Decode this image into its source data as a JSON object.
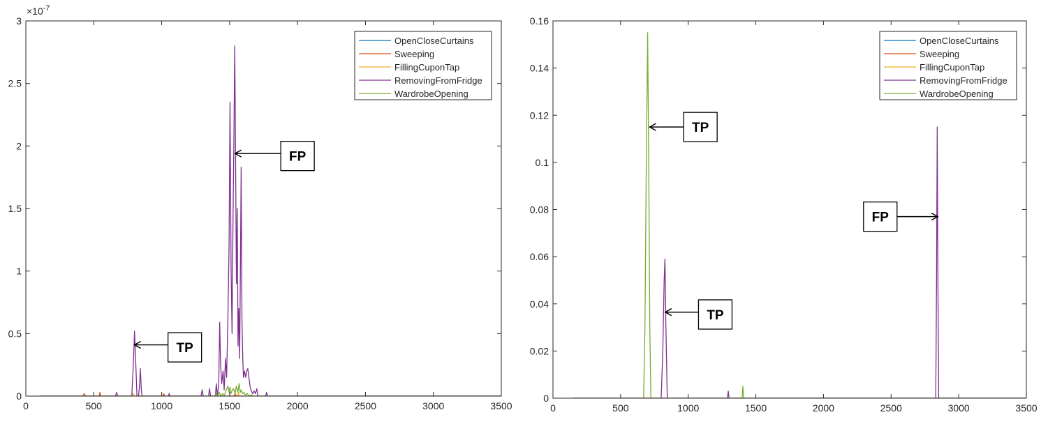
{
  "colors": {
    "series": [
      "#0072BD",
      "#D95319",
      "#EDB120",
      "#7E2F8E",
      "#77AC30"
    ],
    "axis": "#262626",
    "background": "#ffffff"
  },
  "chart_data": [
    {
      "type": "line",
      "title": "",
      "xlabel": "",
      "ylabel": "",
      "exponent_label": "×10",
      "exponent_power": "-7",
      "xlim": [
        0,
        3500
      ],
      "ylim": [
        0,
        3
      ],
      "x_ticks": [
        0,
        500,
        1000,
        1500,
        2000,
        2500,
        3000,
        3500
      ],
      "x_tick_labels": [
        "0",
        "500",
        "1000",
        "1500",
        "2000",
        "2500",
        "3000",
        "3500"
      ],
      "y_ticks": [
        0,
        0.5,
        1,
        1.5,
        2,
        2.5,
        3
      ],
      "y_tick_labels": [
        "0",
        "0.5",
        "1",
        "1.5",
        "2",
        "2.5",
        "3"
      ],
      "grid": false,
      "legend_position": "top-right",
      "series": [
        {
          "name": "OpenCloseCurtains",
          "points": [
            [
              100,
              0
            ],
            [
              3500,
              0
            ]
          ]
        },
        {
          "name": "Sweeping",
          "points": [
            [
              100,
              0
            ],
            [
              420,
              0
            ],
            [
              430,
              0.02
            ],
            [
              440,
              0
            ],
            [
              540,
              0
            ],
            [
              545,
              0.03
            ],
            [
              552,
              0
            ],
            [
              1010,
              0
            ],
            [
              1015,
              0.02
            ],
            [
              1022,
              0
            ],
            [
              1530,
              0
            ],
            [
              1540,
              0.02
            ],
            [
              1550,
              0
            ],
            [
              3500,
              0
            ]
          ]
        },
        {
          "name": "FillingCuponTap",
          "points": [
            [
              100,
              0
            ],
            [
              780,
              0
            ],
            [
              790,
              0.02
            ],
            [
              798,
              0
            ],
            [
              1560,
              0
            ],
            [
              1565,
              0.03
            ],
            [
              1572,
              0
            ],
            [
              3500,
              0
            ]
          ]
        },
        {
          "name": "RemovingFromFridge",
          "points": [
            [
              100,
              0
            ],
            [
              660,
              0
            ],
            [
              668,
              0.03
            ],
            [
              676,
              0
            ],
            [
              780,
              0
            ],
            [
              793,
              0.3
            ],
            [
              800,
              0.52
            ],
            [
              808,
              0.3
            ],
            [
              818,
              0
            ],
            [
              830,
              0
            ],
            [
              838,
              0.1
            ],
            [
              843,
              0.22
            ],
            [
              850,
              0.05
            ],
            [
              856,
              0
            ],
            [
              1050,
              0
            ],
            [
              1055,
              0.02
            ],
            [
              1060,
              0
            ],
            [
              1290,
              0
            ],
            [
              1298,
              0.05
            ],
            [
              1306,
              0
            ],
            [
              1345,
              0
            ],
            [
              1352,
              0.06
            ],
            [
              1360,
              0
            ],
            [
              1395,
              0
            ],
            [
              1402,
              0.1
            ],
            [
              1410,
              0
            ],
            [
              1420,
              0.1
            ],
            [
              1427,
              0.59
            ],
            [
              1434,
              0.25
            ],
            [
              1442,
              0.1
            ],
            [
              1452,
              0.2
            ],
            [
              1460,
              0.05
            ],
            [
              1470,
              0.3
            ],
            [
              1478,
              0.15
            ],
            [
              1487,
              0.6
            ],
            [
              1496,
              1.2
            ],
            [
              1503,
              2.35
            ],
            [
              1511,
              1.0
            ],
            [
              1518,
              0.5
            ],
            [
              1525,
              1.4
            ],
            [
              1532,
              2.1
            ],
            [
              1538,
              2.8
            ],
            [
              1544,
              1.9
            ],
            [
              1550,
              0.9
            ],
            [
              1556,
              1.5
            ],
            [
              1562,
              0.4
            ],
            [
              1568,
              0.7
            ],
            [
              1574,
              0.3
            ],
            [
              1580,
              1.1
            ],
            [
              1585,
              1.83
            ],
            [
              1591,
              0.6
            ],
            [
              1597,
              0.3
            ],
            [
              1602,
              0.15
            ],
            [
              1610,
              0.2
            ],
            [
              1618,
              0.15
            ],
            [
              1626,
              0.2
            ],
            [
              1634,
              0.22
            ],
            [
              1642,
              0.15
            ],
            [
              1650,
              0.08
            ],
            [
              1660,
              0.04
            ],
            [
              1670,
              0.02
            ],
            [
              1680,
              0.04
            ],
            [
              1690,
              0.02
            ],
            [
              1700,
              0.06
            ],
            [
              1708,
              0
            ],
            [
              1765,
              0
            ],
            [
              1772,
              0.03
            ],
            [
              1780,
              0
            ],
            [
              3500,
              0
            ]
          ]
        },
        {
          "name": "WardrobeOpening",
          "points": [
            [
              100,
              0
            ],
            [
              1390,
              0
            ],
            [
              1400,
              0.02
            ],
            [
              1410,
              0
            ],
            [
              1425,
              0.03
            ],
            [
              1435,
              0
            ],
            [
              1450,
              0.02
            ],
            [
              1460,
              0
            ],
            [
              1475,
              0.05
            ],
            [
              1488,
              0.08
            ],
            [
              1496,
              0.03
            ],
            [
              1502,
              0.07
            ],
            [
              1510,
              0.02
            ],
            [
              1520,
              0.05
            ],
            [
              1530,
              0.06
            ],
            [
              1540,
              0.02
            ],
            [
              1550,
              0.08
            ],
            [
              1560,
              0.03
            ],
            [
              1570,
              0.1
            ],
            [
              1578,
              0.03
            ],
            [
              1585,
              0.05
            ],
            [
              1595,
              0.02
            ],
            [
              1605,
              0.03
            ],
            [
              1615,
              0.01
            ],
            [
              1630,
              0.02
            ],
            [
              1645,
              0
            ],
            [
              1660,
              0.01
            ],
            [
              1675,
              0
            ],
            [
              3500,
              0
            ]
          ]
        }
      ],
      "annotations": [
        {
          "text": "TP",
          "arrow_to": [
            800,
            0.41
          ],
          "box_center": [
            1170,
            0.39
          ]
        },
        {
          "text": "FP",
          "arrow_to": [
            1540,
            1.94
          ],
          "box_center": [
            2000,
            1.92
          ]
        }
      ]
    },
    {
      "type": "line",
      "title": "",
      "xlabel": "",
      "ylabel": "",
      "xlim": [
        0,
        3500
      ],
      "ylim": [
        0,
        0.16
      ],
      "x_ticks": [
        0,
        500,
        1000,
        1500,
        2000,
        2500,
        3000,
        3500
      ],
      "x_tick_labels": [
        "0",
        "500",
        "1000",
        "1500",
        "2000",
        "2500",
        "3000",
        "3500"
      ],
      "y_ticks": [
        0,
        0.02,
        0.04,
        0.06,
        0.08,
        0.1,
        0.12,
        0.14,
        0.16
      ],
      "y_tick_labels": [
        "0",
        "0.02",
        "0.04",
        "0.06",
        "0.08",
        "0.1",
        "0.12",
        "0.14",
        "0.16"
      ],
      "grid": false,
      "legend_position": "top-right",
      "series": [
        {
          "name": "OpenCloseCurtains",
          "points": [
            [
              150,
              0
            ],
            [
              3500,
              0
            ]
          ]
        },
        {
          "name": "Sweeping",
          "points": [
            [
              150,
              0
            ],
            [
              3500,
              0
            ]
          ]
        },
        {
          "name": "FillingCuponTap",
          "points": [
            [
              150,
              0
            ],
            [
              3500,
              0
            ]
          ]
        },
        {
          "name": "RemovingFromFridge",
          "points": [
            [
              150,
              0
            ],
            [
              800,
              0
            ],
            [
              812,
              0.02
            ],
            [
              822,
              0.05
            ],
            [
              828,
              0.059
            ],
            [
              835,
              0.03
            ],
            [
              845,
              0
            ],
            [
              1290,
              0
            ],
            [
              1296,
              0.003
            ],
            [
              1302,
              0
            ],
            [
              2830,
              0
            ],
            [
              2836,
              0.05
            ],
            [
              2841,
              0.115
            ],
            [
              2846,
              0.05
            ],
            [
              2852,
              0
            ],
            [
              3500,
              0
            ]
          ]
        },
        {
          "name": "WardrobeOpening",
          "points": [
            [
              150,
              0
            ],
            [
              670,
              0
            ],
            [
              680,
              0.03
            ],
            [
              690,
              0.1
            ],
            [
              700,
              0.155
            ],
            [
              708,
              0.1
            ],
            [
              716,
              0.03
            ],
            [
              724,
              0
            ],
            [
              1398,
              0
            ],
            [
              1404,
              0.005
            ],
            [
              1410,
              0
            ],
            [
              3500,
              0
            ]
          ]
        }
      ],
      "annotations": [
        {
          "text": "TP",
          "arrow_to": [
            715,
            0.115
          ],
          "box_center": [
            1090,
            0.115
          ]
        },
        {
          "text": "TP",
          "arrow_to": [
            830,
            0.0365
          ],
          "box_center": [
            1200,
            0.0355
          ]
        },
        {
          "text": "FP",
          "arrow_to": [
            2845,
            0.077
          ],
          "box_center": [
            2420,
            0.077
          ]
        }
      ]
    }
  ]
}
